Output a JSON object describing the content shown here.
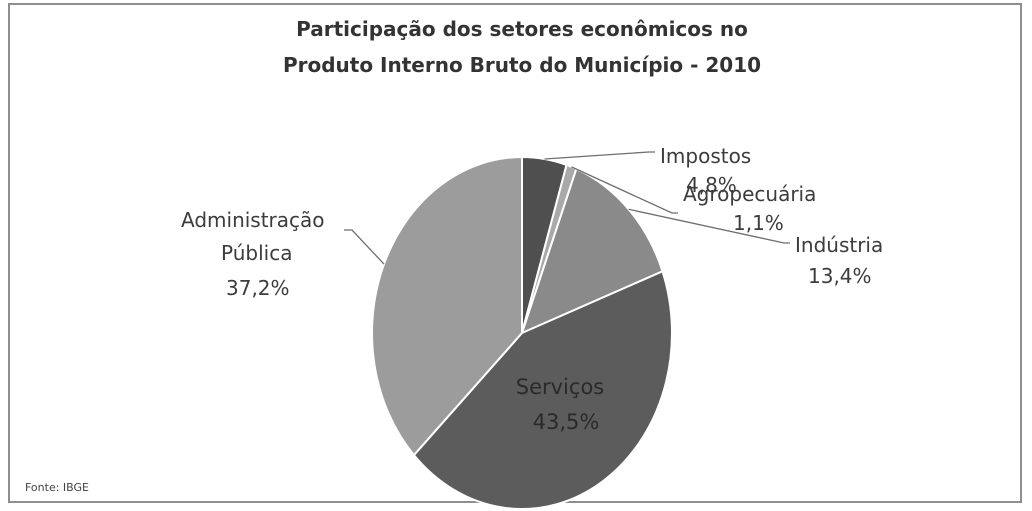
{
  "chart_data": {
    "type": "pie",
    "title": "Participação dos setores econômicos no",
    "subtitle": "Produto Interno Bruto do Município - 2010",
    "slices": [
      {
        "name": "Impostos",
        "value": 4.8,
        "label": "4,8%",
        "color": "#4f4f4f"
      },
      {
        "name": "Agropecuária",
        "value": 1.1,
        "label": "1,1%",
        "color": "#a9a9a9"
      },
      {
        "name": "Indústria",
        "value": 13.4,
        "label": "13,4%",
        "color": "#8a8a8a"
      },
      {
        "name": "Serviços",
        "value": 43.5,
        "label": "43,5%",
        "color": "#5c5c5c"
      },
      {
        "name": "Administração",
        "name_line2": "Pública",
        "value": 37.2,
        "label": "37,2%",
        "color": "#9c9c9c"
      }
    ],
    "source": "Fonte: IBGE",
    "legend": "none",
    "grid": false
  }
}
